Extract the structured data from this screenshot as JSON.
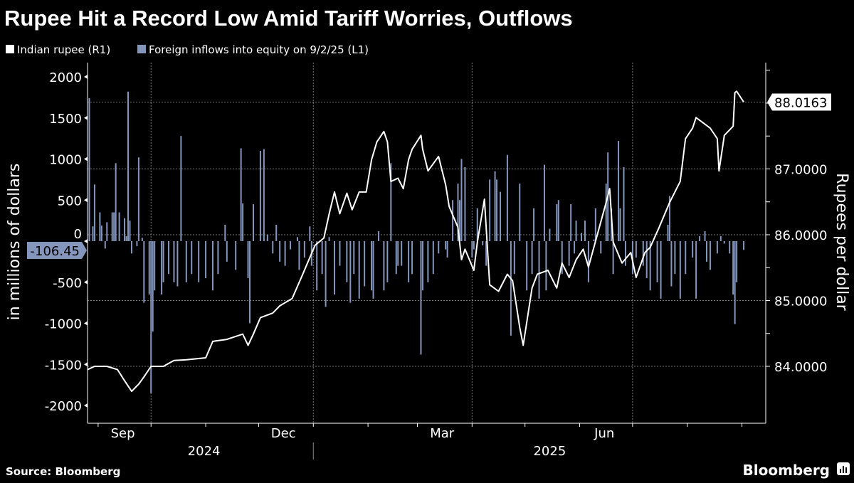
{
  "title": "Rupee Hit a Record Low Amid Tariff Worries, Outflows",
  "legend": [
    {
      "label": "Indian rupee (R1)",
      "color": "#ffffff"
    },
    {
      "label": "Foreign inflows into equity on 9/2/25 (L1)",
      "color": "#8596bd"
    }
  ],
  "source": "Source: Bloomberg",
  "logo": "Bloomberg",
  "chart_data": {
    "type": "bar+line",
    "title": "Rupee Hit a Record Low Amid Tariff Worries, Outflows",
    "left_axis": {
      "label": "in millions of dollars",
      "range": [
        -2000,
        2000
      ],
      "ticks": [
        "2000",
        "1500",
        "1000",
        "500",
        "0",
        "-500",
        "-1000",
        "-1500",
        "-2000"
      ],
      "last_value_label": "-106.45"
    },
    "right_axis": {
      "label": "Rupees per dollar",
      "range": [
        83.5,
        88.5
      ],
      "ticks": [
        "88.0163",
        "87.0000",
        "86.0000",
        "85.0000",
        "84.0000"
      ],
      "tick_values": [
        87,
        86,
        85,
        84
      ],
      "last_value_label": "88.0163",
      "last_value": 88.0163
    },
    "x_axis": {
      "months": [
        {
          "label": "Sep",
          "date": "2024-09-15"
        },
        {
          "label": "Dec",
          "date": "2024-12-15"
        },
        {
          "label": "Mar",
          "date": "2025-03-15"
        },
        {
          "label": "Jun",
          "date": "2025-06-15"
        }
      ],
      "years": [
        {
          "label": "2024",
          "date": "2024-10-31"
        },
        {
          "label": "2025",
          "date": "2025-05-15"
        }
      ],
      "gridlines": [
        "2024-10-01",
        "2025-01-01",
        "2025-04-01",
        "2025-07-01"
      ]
    },
    "grid": true,
    "legend_position": "top-left",
    "series": [
      {
        "name": "Indian rupee (R1)",
        "type": "line",
        "axis": "right",
        "color": "#ffffff",
        "points": [
          [
            "2024-08-26",
            83.95
          ],
          [
            "2024-08-30",
            84.0
          ],
          [
            "2024-09-06",
            84.0
          ],
          [
            "2024-09-12",
            83.95
          ],
          [
            "2024-09-16",
            83.78
          ],
          [
            "2024-09-20",
            83.62
          ],
          [
            "2024-09-24",
            83.73
          ],
          [
            "2024-09-27",
            83.84
          ],
          [
            "2024-10-01",
            84.0
          ],
          [
            "2024-10-08",
            84.0
          ],
          [
            "2024-10-14",
            84.09
          ],
          [
            "2024-10-21",
            84.1
          ],
          [
            "2024-11-01",
            84.13
          ],
          [
            "2024-11-05",
            84.38
          ],
          [
            "2024-11-13",
            84.41
          ],
          [
            "2024-11-22",
            84.49
          ],
          [
            "2024-11-25",
            84.32
          ],
          [
            "2024-11-28",
            84.49
          ],
          [
            "2024-12-02",
            84.74
          ],
          [
            "2024-12-09",
            84.81
          ],
          [
            "2024-12-13",
            84.92
          ],
          [
            "2024-12-20",
            85.03
          ],
          [
            "2024-12-26",
            85.4
          ],
          [
            "2025-01-02",
            85.84
          ],
          [
            "2025-01-07",
            85.95
          ],
          [
            "2025-01-10",
            86.32
          ],
          [
            "2025-01-13",
            86.65
          ],
          [
            "2025-01-16",
            86.32
          ],
          [
            "2025-01-20",
            86.63
          ],
          [
            "2025-01-23",
            86.38
          ],
          [
            "2025-01-27",
            86.65
          ],
          [
            "2025-01-31",
            86.65
          ],
          [
            "2025-02-03",
            87.14
          ],
          [
            "2025-02-06",
            87.41
          ],
          [
            "2025-02-10",
            87.57
          ],
          [
            "2025-02-12",
            87.41
          ],
          [
            "2025-02-14",
            86.81
          ],
          [
            "2025-02-18",
            86.86
          ],
          [
            "2025-02-21",
            86.7
          ],
          [
            "2025-02-24",
            87.14
          ],
          [
            "2025-02-26",
            87.3
          ],
          [
            "2025-03-03",
            87.51
          ],
          [
            "2025-03-04",
            87.3
          ],
          [
            "2025-03-07",
            86.97
          ],
          [
            "2025-03-13",
            87.19
          ],
          [
            "2025-03-17",
            86.76
          ],
          [
            "2025-03-19",
            86.43
          ],
          [
            "2025-03-24",
            86.11
          ],
          [
            "2025-03-26",
            85.62
          ],
          [
            "2025-03-28",
            85.78
          ],
          [
            "2025-04-02",
            85.46
          ],
          [
            "2025-04-04",
            85.89
          ],
          [
            "2025-04-08",
            86.54
          ],
          [
            "2025-04-11",
            85.24
          ],
          [
            "2025-04-16",
            85.14
          ],
          [
            "2025-04-21",
            85.4
          ],
          [
            "2025-04-24",
            85.3
          ],
          [
            "2025-04-28",
            84.59
          ],
          [
            "2025-04-30",
            84.32
          ],
          [
            "2025-05-05",
            85.19
          ],
          [
            "2025-05-08",
            85.4
          ],
          [
            "2025-05-14",
            85.46
          ],
          [
            "2025-05-19",
            85.19
          ],
          [
            "2025-05-22",
            85.57
          ],
          [
            "2025-05-26",
            85.35
          ],
          [
            "2025-05-30",
            85.62
          ],
          [
            "2025-06-03",
            85.78
          ],
          [
            "2025-06-06",
            85.51
          ],
          [
            "2025-06-11",
            86.0
          ],
          [
            "2025-06-16",
            86.49
          ],
          [
            "2025-06-18",
            86.7
          ],
          [
            "2025-06-20",
            85.89
          ],
          [
            "2025-06-25",
            85.57
          ],
          [
            "2025-06-30",
            85.73
          ],
          [
            "2025-07-03",
            85.35
          ],
          [
            "2025-07-08",
            85.73
          ],
          [
            "2025-07-11",
            85.81
          ],
          [
            "2025-07-16",
            86.11
          ],
          [
            "2025-07-22",
            86.49
          ],
          [
            "2025-07-28",
            86.81
          ],
          [
            "2025-07-31",
            87.46
          ],
          [
            "2025-08-04",
            87.62
          ],
          [
            "2025-08-06",
            87.78
          ],
          [
            "2025-08-11",
            87.68
          ],
          [
            "2025-08-14",
            87.62
          ],
          [
            "2025-08-18",
            87.46
          ],
          [
            "2025-08-19",
            86.97
          ],
          [
            "2025-08-22",
            87.51
          ],
          [
            "2025-08-27",
            87.65
          ],
          [
            "2025-08-28",
            88.16
          ],
          [
            "2025-08-29",
            88.18
          ],
          [
            "2025-09-02",
            88.0163
          ]
        ]
      },
      {
        "name": "Foreign inflows into equity on 9/2/25 (L1)",
        "type": "bar",
        "axis": "left",
        "color": "#8596bd",
        "points": [
          [
            "2024-08-27",
            1740
          ],
          [
            "2024-08-29",
            180
          ],
          [
            "2024-08-30",
            690
          ],
          [
            "2024-09-02",
            350
          ],
          [
            "2024-09-03",
            190
          ],
          [
            "2024-09-05",
            -90
          ],
          [
            "2024-09-06",
            230
          ],
          [
            "2024-09-09",
            350
          ],
          [
            "2024-09-10",
            350
          ],
          [
            "2024-09-11",
            950
          ],
          [
            "2024-09-13",
            350
          ],
          [
            "2024-09-16",
            280
          ],
          [
            "2024-09-17",
            60
          ],
          [
            "2024-09-18",
            1820
          ],
          [
            "2024-09-19",
            250
          ],
          [
            "2024-09-20",
            -150
          ],
          [
            "2024-09-23",
            -60
          ],
          [
            "2024-09-24",
            1020
          ],
          [
            "2024-09-26",
            40
          ],
          [
            "2024-09-27",
            -750
          ],
          [
            "2024-09-30",
            -650
          ],
          [
            "2024-10-01",
            -1850
          ],
          [
            "2024-10-02",
            -1100
          ],
          [
            "2024-10-03",
            -600
          ],
          [
            "2024-10-07",
            -650
          ],
          [
            "2024-10-08",
            -500
          ],
          [
            "2024-10-11",
            -400
          ],
          [
            "2024-10-14",
            -500
          ],
          [
            "2024-10-16",
            -550
          ],
          [
            "2024-10-18",
            1280
          ],
          [
            "2024-10-21",
            -500
          ],
          [
            "2024-10-24",
            -400
          ],
          [
            "2024-10-28",
            -500
          ],
          [
            "2024-11-01",
            -450
          ],
          [
            "2024-11-05",
            -600
          ],
          [
            "2024-11-08",
            -400
          ],
          [
            "2024-11-12",
            200
          ],
          [
            "2024-11-13",
            -250
          ],
          [
            "2024-11-18",
            -350
          ],
          [
            "2024-11-21",
            1130
          ],
          [
            "2024-11-22",
            460
          ],
          [
            "2024-11-25",
            -450
          ],
          [
            "2024-11-26",
            -1000
          ],
          [
            "2024-11-28",
            450
          ],
          [
            "2024-12-02",
            1100
          ],
          [
            "2024-12-04",
            1120
          ],
          [
            "2024-12-06",
            80
          ],
          [
            "2024-12-09",
            -150
          ],
          [
            "2024-12-11",
            200
          ],
          [
            "2024-12-13",
            -250
          ],
          [
            "2024-12-16",
            -300
          ],
          [
            "2024-12-19",
            -100
          ],
          [
            "2024-12-23",
            50
          ],
          [
            "2024-12-24",
            -350
          ],
          [
            "2024-12-27",
            -200
          ],
          [
            "2024-12-30",
            180
          ],
          [
            "2024-12-31",
            -300
          ],
          [
            "2025-01-03",
            -600
          ],
          [
            "2025-01-06",
            -400
          ],
          [
            "2025-01-08",
            -800
          ],
          [
            "2025-01-10",
            50
          ],
          [
            "2025-01-13",
            -650
          ],
          [
            "2025-01-16",
            -300
          ],
          [
            "2025-01-20",
            -500
          ],
          [
            "2025-01-22",
            -750
          ],
          [
            "2025-01-24",
            -400
          ],
          [
            "2025-01-27",
            -700
          ],
          [
            "2025-01-30",
            -550
          ],
          [
            "2025-02-03",
            -600
          ],
          [
            "2025-02-04",
            -700
          ],
          [
            "2025-02-07",
            120
          ],
          [
            "2025-02-10",
            -600
          ],
          [
            "2025-02-12",
            -500
          ],
          [
            "2025-02-14",
            950
          ],
          [
            "2025-02-17",
            -400
          ],
          [
            "2025-02-18",
            -300
          ],
          [
            "2025-02-20",
            -300
          ],
          [
            "2025-02-24",
            -500
          ],
          [
            "2025-02-26",
            -400
          ],
          [
            "2025-03-03",
            -1380
          ],
          [
            "2025-03-04",
            -600
          ],
          [
            "2025-03-07",
            -500
          ],
          [
            "2025-03-10",
            -400
          ],
          [
            "2025-03-13",
            -150
          ],
          [
            "2025-03-17",
            -100
          ],
          [
            "2025-03-18",
            -200
          ],
          [
            "2025-03-21",
            500
          ],
          [
            "2025-03-24",
            700
          ],
          [
            "2025-03-25",
            500
          ],
          [
            "2025-03-26",
            1000
          ],
          [
            "2025-03-28",
            900
          ],
          [
            "2025-04-01",
            -200
          ],
          [
            "2025-04-02",
            -100
          ],
          [
            "2025-04-04",
            400
          ],
          [
            "2025-04-07",
            -50
          ],
          [
            "2025-04-09",
            -300
          ],
          [
            "2025-04-11",
            750
          ],
          [
            "2025-04-14",
            850
          ],
          [
            "2025-04-15",
            750
          ],
          [
            "2025-04-17",
            600
          ],
          [
            "2025-04-21",
            1050
          ],
          [
            "2025-04-23",
            -1150
          ],
          [
            "2025-04-25",
            -400
          ],
          [
            "2025-04-28",
            700
          ],
          [
            "2025-05-02",
            -600
          ],
          [
            "2025-05-05",
            -400
          ],
          [
            "2025-05-06",
            400
          ],
          [
            "2025-05-09",
            -700
          ],
          [
            "2025-05-12",
            930
          ],
          [
            "2025-05-13",
            -600
          ],
          [
            "2025-05-15",
            150
          ],
          [
            "2025-05-19",
            450
          ],
          [
            "2025-05-20",
            500
          ],
          [
            "2025-05-22",
            -400
          ],
          [
            "2025-05-26",
            -300
          ],
          [
            "2025-05-27",
            450
          ],
          [
            "2025-05-29",
            -150
          ],
          [
            "2025-05-30",
            250
          ],
          [
            "2025-06-02",
            100
          ],
          [
            "2025-06-04",
            250
          ],
          [
            "2025-06-06",
            -500
          ],
          [
            "2025-06-09",
            20
          ],
          [
            "2025-06-10",
            400
          ],
          [
            "2025-06-13",
            -150
          ],
          [
            "2025-06-16",
            700
          ],
          [
            "2025-06-17",
            1080
          ],
          [
            "2025-06-19",
            400
          ],
          [
            "2025-06-20",
            -400
          ],
          [
            "2025-06-23",
            1220
          ],
          [
            "2025-06-24",
            400
          ],
          [
            "2025-06-26",
            900
          ],
          [
            "2025-06-27",
            -300
          ],
          [
            "2025-07-01",
            -400
          ],
          [
            "2025-07-03",
            -200
          ],
          [
            "2025-07-07",
            -300
          ],
          [
            "2025-07-09",
            -450
          ],
          [
            "2025-07-11",
            -600
          ],
          [
            "2025-07-15",
            -500
          ],
          [
            "2025-07-17",
            -700
          ],
          [
            "2025-07-21",
            200
          ],
          [
            "2025-07-22",
            550
          ],
          [
            "2025-07-23",
            -550
          ],
          [
            "2025-07-25",
            -400
          ],
          [
            "2025-07-28",
            -700
          ],
          [
            "2025-07-31",
            -400
          ],
          [
            "2025-08-04",
            -200
          ],
          [
            "2025-08-06",
            -700
          ],
          [
            "2025-08-08",
            60
          ],
          [
            "2025-08-11",
            120
          ],
          [
            "2025-08-12",
            -250
          ],
          [
            "2025-08-14",
            -350
          ],
          [
            "2025-08-18",
            -150
          ],
          [
            "2025-08-20",
            60
          ],
          [
            "2025-08-22",
            -30
          ],
          [
            "2025-08-25",
            -150
          ],
          [
            "2025-08-27",
            -650
          ],
          [
            "2025-08-28",
            -1010
          ],
          [
            "2025-08-29",
            -500
          ],
          [
            "2025-09-02",
            -106.45
          ]
        ]
      }
    ]
  }
}
